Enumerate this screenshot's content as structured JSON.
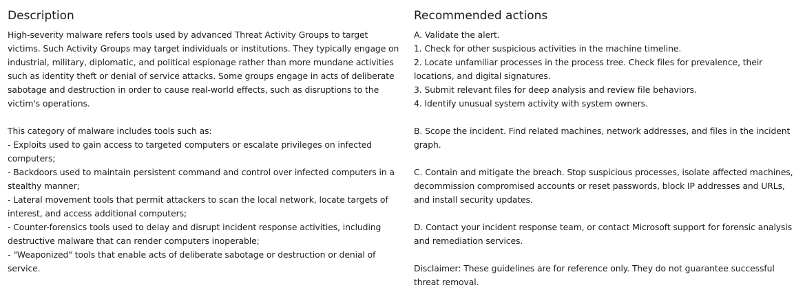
{
  "description": {
    "heading": "Description",
    "intro": "High-severity malware refers tools used by advanced Threat Activity Groups to target victims. Such Activity Groups may target individuals or institutions. They typically engage on industrial, military, diplomatic, and political espionage rather than more mundane activities such as identity theft or denial of service attacks. Some groups engage in acts of deliberate sabotage and destruction in order to cause real-world effects, such as disruptions to the victim's operations.",
    "category_intro": "This category of malware includes tools such as:",
    "items": [
      "- Exploits used to gain access to targeted computers or escalate privileges on infected computers;",
      "- Backdoors used to maintain persistent command and control over infected computers in a stealthy manner;",
      "- Lateral movement tools that permit attackers to scan the local network, locate targets of interest, and access additional computers;",
      "- Counter-forensics tools used to delay and disrupt incident response activities, including destructive malware that can render computers inoperable;",
      "- \"Weaponized\" tools that enable acts of deliberate sabotage or destruction or denial of service."
    ]
  },
  "recommended": {
    "heading": "Recommended actions",
    "section_a": {
      "title": "A. Validate the alert.",
      "steps": [
        "1. Check for other suspicious activities in the machine timeline.",
        "2. Locate unfamiliar processes in the process tree. Check files for prevalence, their locations, and digital signatures.",
        "3. Submit relevant files for deep analysis and review file behaviors.",
        "4. Identify unusual system activity with system owners."
      ]
    },
    "section_b": "B. Scope the incident. Find related machines, network addresses, and files in the incident graph.",
    "section_c": "C. Contain and mitigate the breach. Stop suspicious processes, isolate affected machines, decommission compromised accounts or reset passwords, block IP addresses and URLs, and install security updates.",
    "section_d": "D. Contact your incident response team, or contact Microsoft support for forensic analysis and remediation services.",
    "disclaimer": "Disclaimer: These guidelines are for reference only. They do not guarantee successful threat removal."
  }
}
